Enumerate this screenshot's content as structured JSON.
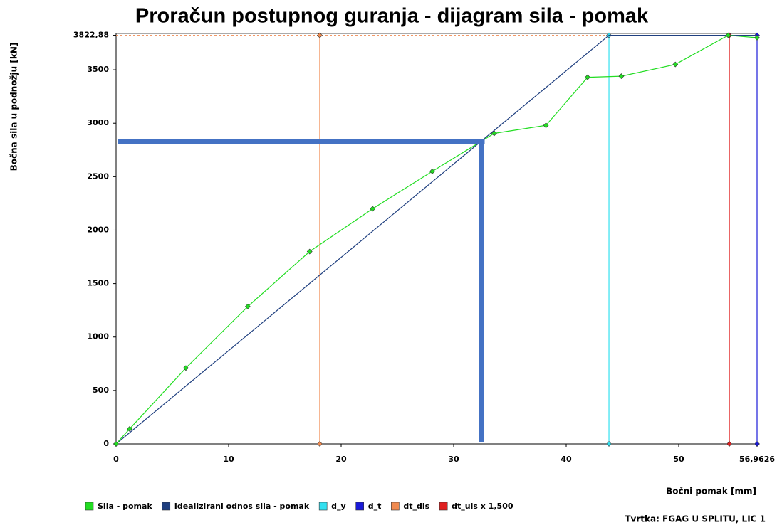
{
  "chart_data": {
    "type": "line",
    "title": "Proračun postupnog guranja - dijagram sila - pomak",
    "x_label": "Bočni pomak [mm]",
    "y_label": "Bočna sila u podnožju [kN]",
    "footer": "Tvrtka: FGAG U SPLITU, LIC 1",
    "xlim": [
      0,
      56.9626
    ],
    "ylim": [
      0,
      3840
    ],
    "xticks": [
      0,
      10,
      20,
      30,
      40,
      50,
      {
        "value": 56.9626,
        "label": "56,9626"
      }
    ],
    "yticks": [
      0,
      500,
      1000,
      1500,
      2000,
      2500,
      3000,
      3500,
      {
        "value": 3822.88,
        "label": "3822,88"
      }
    ],
    "series": [
      {
        "name": "Sila - pomak",
        "color": "#22dd22",
        "x": [
          0,
          1.2,
          6.2,
          11.7,
          17.2,
          22.8,
          28.1,
          33.6,
          38.2,
          41.9,
          44.9,
          49.7,
          54.4,
          56.9626
        ],
        "values": [
          0,
          140,
          710,
          1285,
          1800,
          2200,
          2550,
          2905,
          2980,
          3430,
          3440,
          3550,
          3822.88,
          3800
        ]
      },
      {
        "name": "Idealizirani odnos sila - pomak",
        "color": "#1f3f7f",
        "x": [
          0,
          43.8,
          56.9626
        ],
        "values": [
          0,
          3822.88,
          3822.88
        ]
      },
      {
        "name": "d_y",
        "color": "#33e0f0",
        "x": [
          43.8,
          43.8
        ],
        "values": [
          0,
          3822.88
        ]
      },
      {
        "name": "d_t",
        "color": "#1a1ad8",
        "x": [
          56.9626,
          56.9626
        ],
        "values": [
          0,
          3822.88
        ]
      },
      {
        "name": "dt_dls",
        "color": "#f08a50",
        "x": [
          18.1,
          18.1
        ],
        "values": [
          0,
          3822.88
        ]
      },
      {
        "name": "dt_uls x 1,500",
        "color": "#e02020",
        "x": [
          54.5,
          54.5
        ],
        "values": [
          0,
          3822.88
        ]
      }
    ],
    "reference_line": {
      "value": 3822.88,
      "color": "#f08a50"
    },
    "guide": {
      "x": 32.5,
      "y": 2830,
      "color": "#4472c4"
    }
  }
}
